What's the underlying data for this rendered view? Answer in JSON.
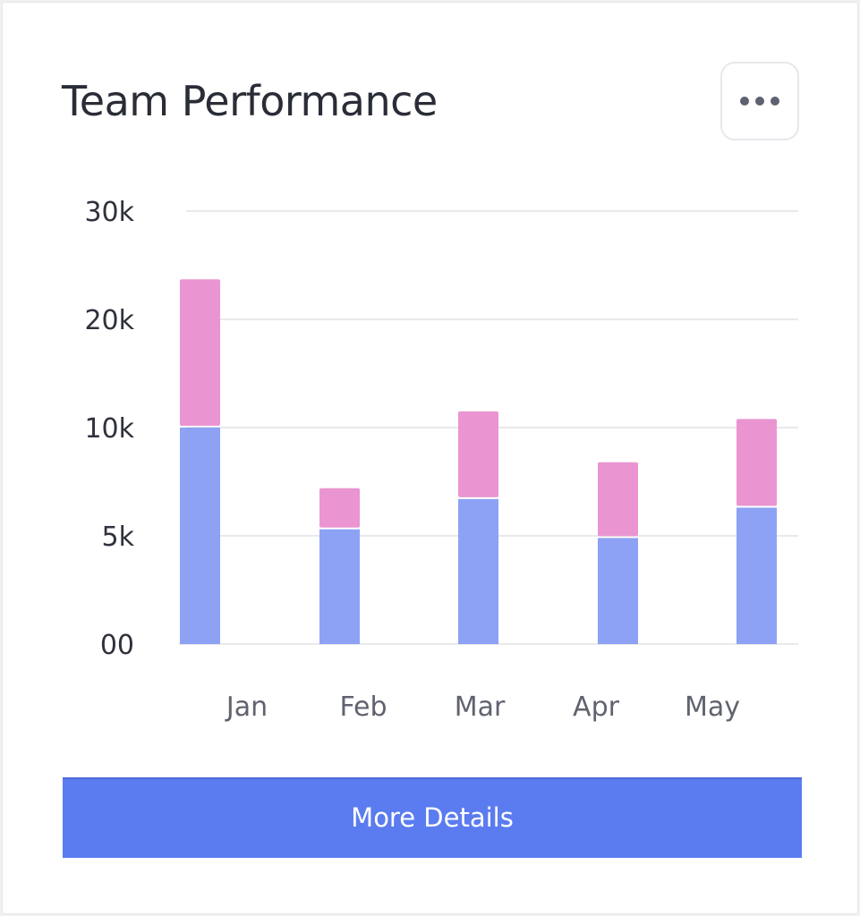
{
  "card": {
    "title": "Team Performance",
    "menu_icon": "more-horizontal-icon",
    "button_label": "More Details"
  },
  "chart_data": {
    "type": "bar",
    "stacked": true,
    "categories": [
      "Jan",
      "Feb",
      "Mar",
      "Apr",
      "May"
    ],
    "series": [
      {
        "values": [
          10000,
          5300,
          6700,
          4900,
          6300
        ],
        "color": "#8da2f5"
      },
      {
        "values": [
          13700,
          1900,
          4800,
          3500,
          4500
        ],
        "color": "#ea95d1"
      }
    ],
    "yticks": [
      {
        "value": 0,
        "label": "00"
      },
      {
        "value": 5000,
        "label": "5k"
      },
      {
        "value": 10000,
        "label": "10k"
      },
      {
        "value": 20000,
        "label": "20k"
      },
      {
        "value": 30000,
        "label": "30k"
      }
    ],
    "title": "Team Performance",
    "xlabel": "",
    "ylabel": "",
    "grid": true,
    "legend": "none"
  }
}
